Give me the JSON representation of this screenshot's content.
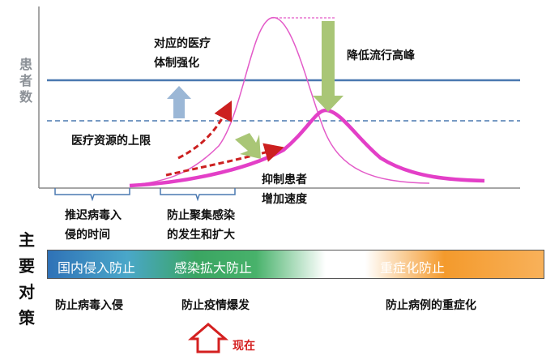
{
  "y_axis_label": [
    "患",
    "者",
    "数"
  ],
  "labels": {
    "strengthen_system": [
      "对应的医疗",
      "体制强化"
    ],
    "lower_peak": "降低流行高峰",
    "medical_limit": "医疗资源的上限",
    "suppress_rate": [
      "抑制患者",
      "增加速度"
    ],
    "delay_time": [
      "推迟病毒入",
      "侵的时间"
    ],
    "prevent_cluster": [
      "防止聚集感染",
      "的发生和扩大"
    ]
  },
  "policy_label": [
    "主",
    "要",
    "对",
    "策"
  ],
  "phases": [
    "国内侵入防止",
    "感染拡大防止",
    "重症化防止"
  ],
  "measures": [
    "防止病毒入侵",
    "防止疫情爆发",
    "防止病例的重症化"
  ],
  "now_label": "现在",
  "colors": {
    "high_curve": "#e35ac8",
    "low_curve": "#e33fc7",
    "capacity_line": "#4a78b0",
    "limit_line": "#4a78b0",
    "arrow_red": "#cc2020",
    "arrow_green": "#a9c676",
    "arrow_blue": "#9bb7d6"
  }
}
